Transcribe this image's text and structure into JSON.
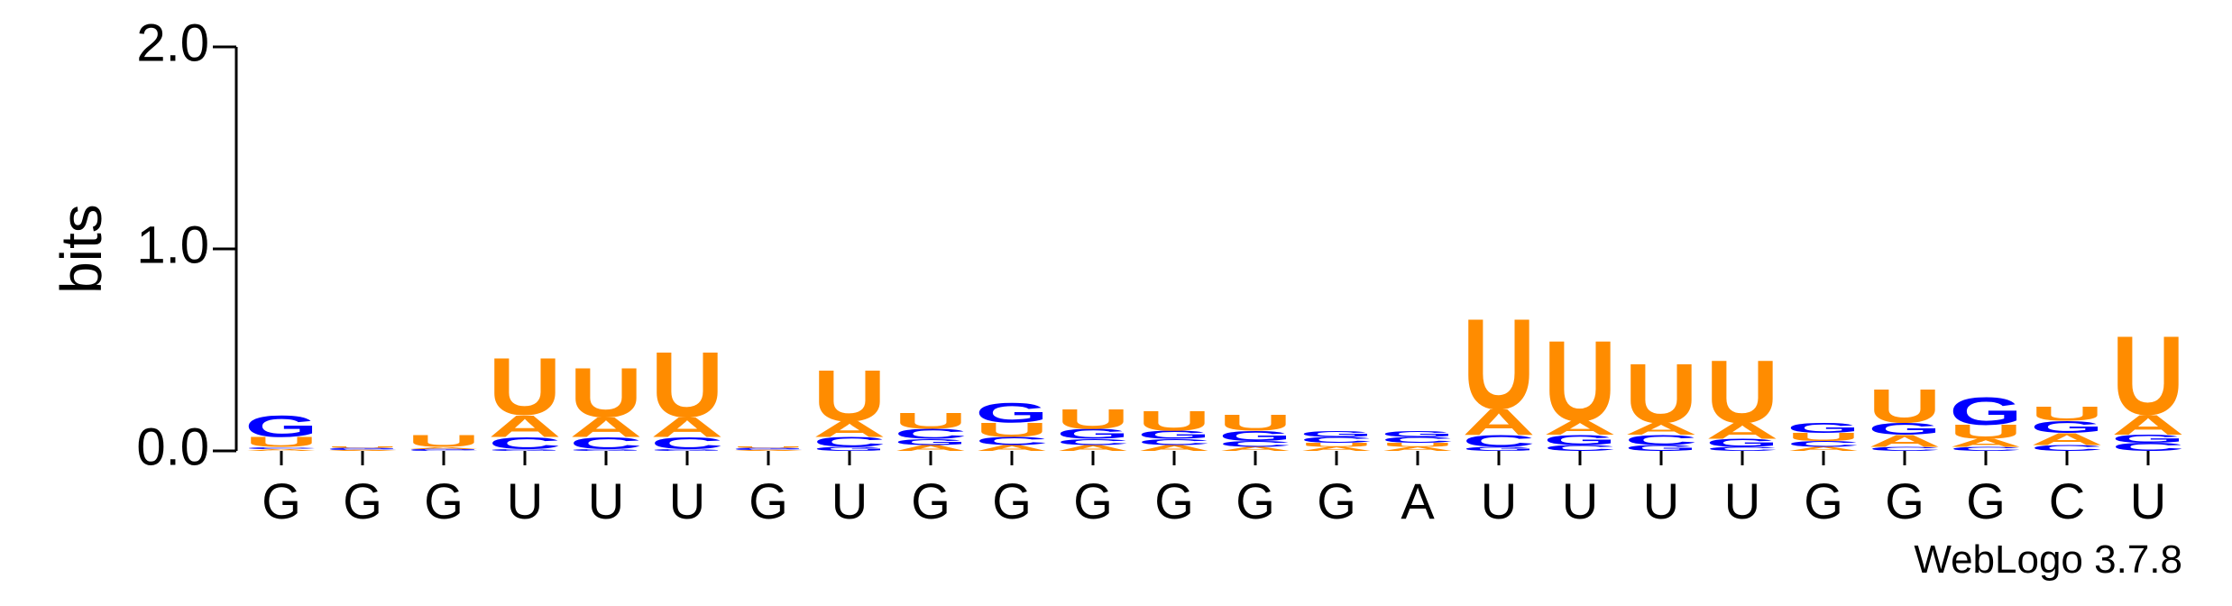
{
  "chart_data": {
    "type": "logo",
    "ylabel": "bits",
    "footer": "WebLogo 3.7.8",
    "categories": [
      "G",
      "G",
      "G",
      "U",
      "U",
      "U",
      "G",
      "U",
      "G",
      "G",
      "G",
      "G",
      "G",
      "G",
      "A",
      "U",
      "U",
      "U",
      "U",
      "G",
      "G",
      "G",
      "C",
      "U"
    ],
    "ylim": [
      0,
      2
    ],
    "yticks": [
      {
        "value": 0,
        "label": "0.0"
      },
      {
        "value": 1,
        "label": "1.0"
      },
      {
        "value": 2,
        "label": "2.0"
      }
    ],
    "series": [
      {
        "name": "A",
        "color": "#ff8c00",
        "values": [
          0.01,
          0.005,
          0.01,
          0.11,
          0.1,
          0.1,
          0.005,
          0.08,
          0.03,
          0.03,
          0.03,
          0.03,
          0.02,
          0.02,
          0.02,
          0.13,
          0.07,
          0.06,
          0.08,
          0.02,
          0.06,
          0.04,
          0.06,
          0.1
        ]
      },
      {
        "name": "C",
        "color": "#0000ff",
        "values": [
          0.01,
          0.005,
          0.005,
          0.06,
          0.06,
          0.06,
          0.005,
          0.05,
          0.05,
          0.04,
          0.03,
          0.03,
          0.03,
          0.03,
          0.03,
          0.06,
          0.03,
          0.05,
          0.02,
          0.03,
          0.02,
          0.02,
          0.03,
          0.04
        ]
      },
      {
        "name": "G",
        "color": "#0000ff",
        "values": [
          0.11,
          0.005,
          0.005,
          0.01,
          0.01,
          0.01,
          0.005,
          0.02,
          0.03,
          0.1,
          0.05,
          0.04,
          0.05,
          0.03,
          0.03,
          0.02,
          0.05,
          0.03,
          0.04,
          0.05,
          0.06,
          0.14,
          0.06,
          0.04
        ]
      },
      {
        "name": "U",
        "color": "#ff8c00",
        "values": [
          0.05,
          0.005,
          0.06,
          0.29,
          0.25,
          0.33,
          0.005,
          0.26,
          0.08,
          0.07,
          0.1,
          0.1,
          0.08,
          0.02,
          0.02,
          0.46,
          0.41,
          0.3,
          0.32,
          0.04,
          0.17,
          0.07,
          0.07,
          0.4
        ]
      }
    ]
  }
}
